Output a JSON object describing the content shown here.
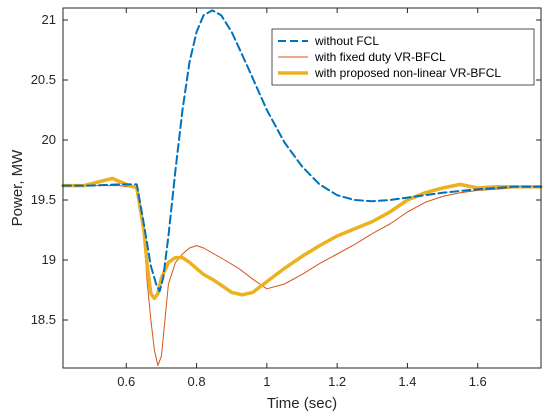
{
  "chart_data": {
    "type": "line",
    "xlabel": "Time (sec)",
    "ylabel": "Power, MW",
    "xlim": [
      0.42,
      1.78
    ],
    "ylim": [
      18.1,
      21.1
    ],
    "xticks": [
      0.6,
      0.8,
      1,
      1.2,
      1.4,
      1.6
    ],
    "xtick_labels": [
      "0.6",
      "0.8",
      "1",
      "1.2",
      "1.4",
      "1.6"
    ],
    "yticks": [
      18.5,
      19,
      19.5,
      20,
      20.5,
      21
    ],
    "ytick_labels": [
      "18.5",
      "19",
      "19.5",
      "20",
      "20.5",
      "21"
    ],
    "grid": false,
    "legend_position": "top-right",
    "series": [
      {
        "name": "without FCL",
        "color": "#0072BD",
        "style": "dashed",
        "points": [
          [
            0.42,
            19.62
          ],
          [
            0.5,
            19.62
          ],
          [
            0.58,
            19.63
          ],
          [
            0.63,
            19.63
          ],
          [
            0.65,
            19.3
          ],
          [
            0.67,
            18.95
          ],
          [
            0.685,
            18.8
          ],
          [
            0.695,
            18.74
          ],
          [
            0.705,
            18.85
          ],
          [
            0.72,
            19.2
          ],
          [
            0.74,
            19.75
          ],
          [
            0.76,
            20.25
          ],
          [
            0.78,
            20.65
          ],
          [
            0.8,
            20.9
          ],
          [
            0.82,
            21.04
          ],
          [
            0.845,
            21.08
          ],
          [
            0.87,
            21.04
          ],
          [
            0.9,
            20.9
          ],
          [
            0.95,
            20.58
          ],
          [
            1.0,
            20.25
          ],
          [
            1.05,
            19.98
          ],
          [
            1.1,
            19.78
          ],
          [
            1.15,
            19.63
          ],
          [
            1.2,
            19.54
          ],
          [
            1.25,
            19.5
          ],
          [
            1.3,
            19.49
          ],
          [
            1.35,
            19.5
          ],
          [
            1.4,
            19.52
          ],
          [
            1.5,
            19.56
          ],
          [
            1.6,
            19.59
          ],
          [
            1.7,
            19.61
          ],
          [
            1.78,
            19.61
          ]
        ]
      },
      {
        "name": "with fixed duty VR-BFCL",
        "color": "#D95319",
        "style": "solid",
        "points": [
          [
            0.42,
            19.62
          ],
          [
            0.5,
            19.62
          ],
          [
            0.58,
            19.62
          ],
          [
            0.63,
            19.6
          ],
          [
            0.65,
            19.2
          ],
          [
            0.66,
            18.8
          ],
          [
            0.67,
            18.5
          ],
          [
            0.68,
            18.25
          ],
          [
            0.69,
            18.12
          ],
          [
            0.7,
            18.2
          ],
          [
            0.71,
            18.5
          ],
          [
            0.72,
            18.8
          ],
          [
            0.74,
            18.98
          ],
          [
            0.76,
            19.05
          ],
          [
            0.78,
            19.1
          ],
          [
            0.8,
            19.12
          ],
          [
            0.82,
            19.1
          ],
          [
            0.85,
            19.05
          ],
          [
            0.88,
            19.0
          ],
          [
            0.92,
            18.93
          ],
          [
            0.96,
            18.84
          ],
          [
            1.0,
            18.76
          ],
          [
            1.05,
            18.8
          ],
          [
            1.1,
            18.88
          ],
          [
            1.15,
            18.97
          ],
          [
            1.2,
            19.05
          ],
          [
            1.25,
            19.13
          ],
          [
            1.3,
            19.22
          ],
          [
            1.35,
            19.3
          ],
          [
            1.4,
            19.4
          ],
          [
            1.45,
            19.48
          ],
          [
            1.5,
            19.53
          ],
          [
            1.55,
            19.56
          ],
          [
            1.6,
            19.58
          ],
          [
            1.65,
            19.59
          ],
          [
            1.7,
            19.6
          ],
          [
            1.78,
            19.61
          ]
        ]
      },
      {
        "name": "with proposed non-linear VR-BFCL",
        "color": "#EDB120",
        "style": "solid-thick",
        "points": [
          [
            0.42,
            19.62
          ],
          [
            0.48,
            19.62
          ],
          [
            0.52,
            19.65
          ],
          [
            0.56,
            19.68
          ],
          [
            0.6,
            19.63
          ],
          [
            0.63,
            19.6
          ],
          [
            0.65,
            19.25
          ],
          [
            0.66,
            18.95
          ],
          [
            0.67,
            18.72
          ],
          [
            0.68,
            18.68
          ],
          [
            0.69,
            18.72
          ],
          [
            0.7,
            18.85
          ],
          [
            0.72,
            18.98
          ],
          [
            0.74,
            19.02
          ],
          [
            0.76,
            19.02
          ],
          [
            0.78,
            18.98
          ],
          [
            0.8,
            18.93
          ],
          [
            0.82,
            18.88
          ],
          [
            0.85,
            18.83
          ],
          [
            0.88,
            18.77
          ],
          [
            0.9,
            18.73
          ],
          [
            0.93,
            18.71
          ],
          [
            0.96,
            18.73
          ],
          [
            1.0,
            18.82
          ],
          [
            1.05,
            18.93
          ],
          [
            1.1,
            19.03
          ],
          [
            1.15,
            19.12
          ],
          [
            1.2,
            19.2
          ],
          [
            1.25,
            19.26
          ],
          [
            1.3,
            19.32
          ],
          [
            1.35,
            19.4
          ],
          [
            1.4,
            19.5
          ],
          [
            1.45,
            19.56
          ],
          [
            1.5,
            19.6
          ],
          [
            1.55,
            19.63
          ],
          [
            1.6,
            19.6
          ],
          [
            1.65,
            19.61
          ],
          [
            1.7,
            19.61
          ],
          [
            1.78,
            19.61
          ]
        ]
      }
    ]
  }
}
